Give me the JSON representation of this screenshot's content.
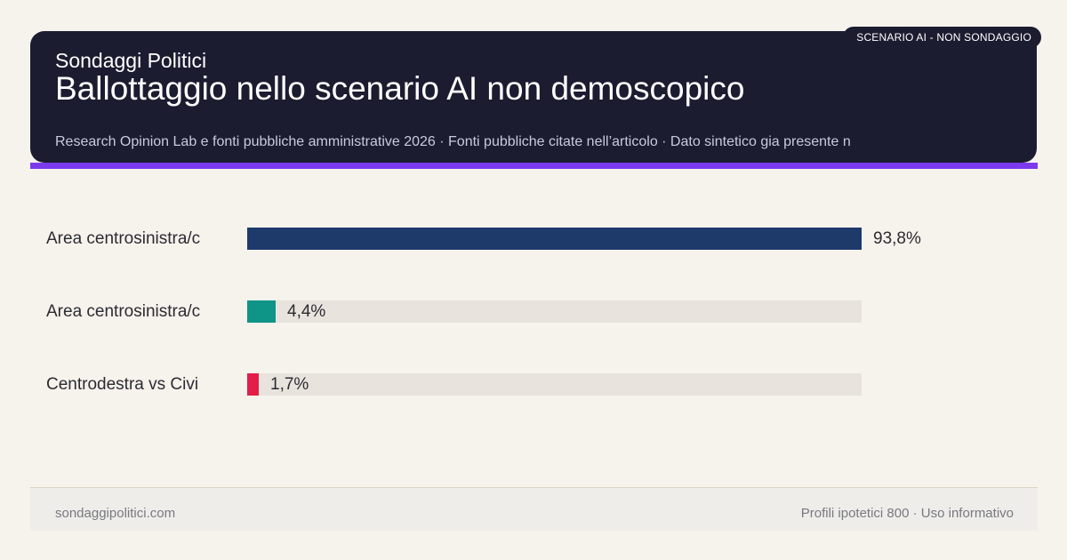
{
  "header": {
    "badge": "SCENARIO AI - NON SONDAGGIO",
    "brand": "Sondaggi Politici",
    "title": "Ballottaggio nello scenario AI non demoscopico",
    "subtitle": "Research Opinion Lab e fonti pubbliche amministrative 2026 · Fonti pubbliche citate nell’articolo · Dato sintetico gia presente n"
  },
  "colors": {
    "header_bg": "#1b1c30",
    "accent": "#7c3aed",
    "track": "#e8e3dc",
    "series": [
      "#1e3a6b",
      "#0f9488",
      "#e11d48"
    ]
  },
  "chart_data": {
    "type": "bar",
    "orientation": "horizontal",
    "categories": [
      "Area centrosinistra/c",
      "Area centrosinistra/c",
      "Centrodestra vs Civi"
    ],
    "values": [
      93.8,
      4.4,
      1.7
    ],
    "value_labels": [
      "93,8%",
      "4,4%",
      "1,7%"
    ],
    "xlim": [
      0,
      93.8
    ],
    "colors": [
      "#1e3a6b",
      "#0f9488",
      "#e11d48"
    ],
    "grid": false
  },
  "footer": {
    "left": "sondaggipolitici.com",
    "right": "Profili ipotetici 800 · Uso informativo"
  }
}
